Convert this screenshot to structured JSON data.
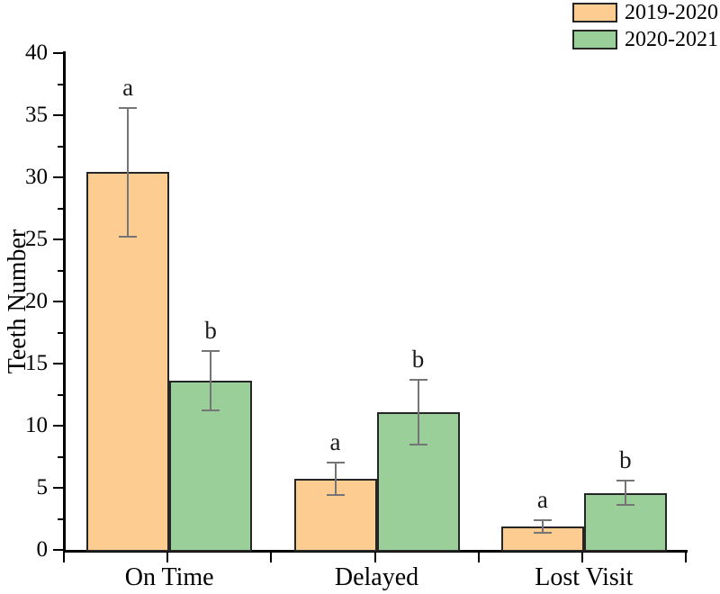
{
  "chart_data": {
    "type": "bar",
    "title": "",
    "xlabel": "",
    "ylabel": "Teeth Number",
    "categories": [
      "On Time",
      "Delayed",
      "Lost Visit"
    ],
    "series": [
      {
        "name": "2019-2020",
        "color": "#fdcc90",
        "border_color": "#262626",
        "values": [
          30.4,
          5.7,
          1.9
        ],
        "errors": [
          5.2,
          1.3,
          0.5
        ],
        "significance_letters": [
          "a",
          "a",
          "a"
        ]
      },
      {
        "name": "2020-2021",
        "color": "#9bcf99",
        "border_color": "#262626",
        "values": [
          13.6,
          11.1,
          4.6
        ],
        "errors": [
          2.4,
          2.6,
          1.0
        ],
        "significance_letters": [
          "b",
          "b",
          "b"
        ]
      }
    ],
    "ylim": [
      0,
      40
    ],
    "y_major_step": 5,
    "y_minor_step": 2.5,
    "y_tick_labels": [
      "0",
      "5",
      "10",
      "15",
      "20",
      "25",
      "30",
      "35",
      "40"
    ],
    "grid": false,
    "legend_position": "top-right",
    "error_bar_color": "#757575",
    "axis_color": "#000000"
  }
}
